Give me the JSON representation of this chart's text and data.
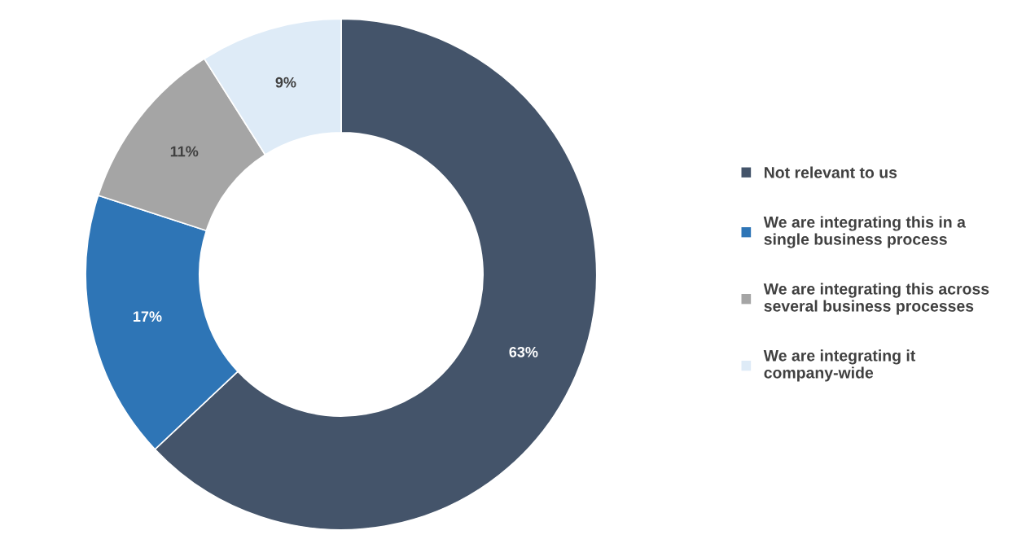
{
  "chart_data": {
    "type": "donut",
    "categories": [
      "Not relevant to us",
      "We are integrating this in a single business process",
      "We are integrating this across several business processes",
      "We are integrating it company-wide"
    ],
    "values": [
      63,
      17,
      11,
      9
    ],
    "colors": [
      "#44546a",
      "#2e75b6",
      "#a5a5a5",
      "#deebf7"
    ],
    "value_labels": [
      "63%",
      "17%",
      "11%",
      "9%"
    ],
    "legend": "right"
  }
}
